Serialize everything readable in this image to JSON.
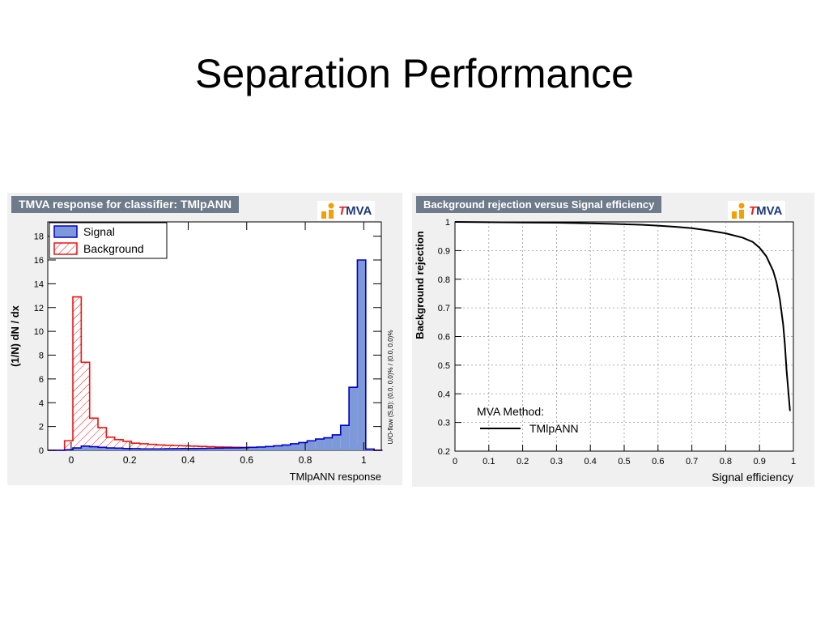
{
  "slide": {
    "title": "Separation Performance"
  },
  "chart_data": [
    {
      "type": "bar",
      "title": "TMVA response for classifier: TMlpANN",
      "logo": {
        "first": "T",
        "rest": "MVA"
      },
      "xlabel": "TMlpANN response",
      "ylabel": "(1/N) dN / dx",
      "side_label": "U/O-flow (S,B): (0.0, 0.0)% / (0.0, 0.0)%",
      "xlim": [
        -0.08,
        1.06
      ],
      "ylim": [
        0,
        19.2
      ],
      "xticks": [
        0,
        0.2,
        0.4,
        0.6,
        0.8,
        1
      ],
      "xtick_labels": [
        "0",
        "0.2",
        "0.4",
        "0.6",
        "0.8",
        "1"
      ],
      "yticks": [
        0,
        2,
        4,
        6,
        8,
        10,
        12,
        14,
        16,
        18
      ],
      "ytick_labels": [
        "0",
        "2",
        "4",
        "6",
        "8",
        "10",
        "12",
        "14",
        "16",
        "18"
      ],
      "bin_edges": [
        -0.08,
        -0.0514,
        -0.0228,
        0.0058,
        0.0344,
        0.063,
        0.0916,
        0.1202,
        0.1488,
        0.1774,
        0.206,
        0.2346,
        0.2632,
        0.2918,
        0.3204,
        0.349,
        0.3776,
        0.4062,
        0.4348,
        0.4634,
        0.492,
        0.5206,
        0.5492,
        0.5778,
        0.6064,
        0.635,
        0.6636,
        0.6922,
        0.7208,
        0.7494,
        0.778,
        0.8066,
        0.8352,
        0.8638,
        0.8924,
        0.921,
        0.9496,
        0.9782,
        1.0068,
        1.0354,
        1.064
      ],
      "legend": {
        "position": "top-left",
        "entries": [
          "Signal",
          "Background"
        ]
      },
      "series": [
        {
          "name": "Signal",
          "color": "#0000cc",
          "fill": "#7d99d9",
          "values": [
            0,
            0,
            0.05,
            0.2,
            0.35,
            0.3,
            0.25,
            0.2,
            0.18,
            0.15,
            0.14,
            0.12,
            0.12,
            0.12,
            0.13,
            0.14,
            0.15,
            0.15,
            0.16,
            0.17,
            0.18,
            0.2,
            0.2,
            0.22,
            0.25,
            0.28,
            0.32,
            0.38,
            0.45,
            0.55,
            0.65,
            0.8,
            0.95,
            1.05,
            1.3,
            2.1,
            5.3,
            16.0,
            0.1,
            0
          ]
        },
        {
          "name": "Background",
          "color": "#ee1111",
          "fill": "hatch",
          "values": [
            0,
            0,
            0.8,
            12.9,
            7.4,
            2.7,
            1.9,
            1.1,
            0.9,
            0.75,
            0.6,
            0.55,
            0.5,
            0.45,
            0.42,
            0.4,
            0.38,
            0.35,
            0.33,
            0.3,
            0.28,
            0.27,
            0.25,
            0.24,
            0.22,
            0.21,
            0.2,
            0.19,
            0.18,
            0.17,
            0.17,
            0.16,
            0.16,
            0.15,
            0.15,
            0.15,
            0.15,
            0.3,
            0.1,
            0
          ]
        }
      ]
    },
    {
      "type": "line",
      "title": "Background rejection versus Signal efficiency",
      "logo": {
        "first": "T",
        "rest": "MVA"
      },
      "xlabel": "Signal efficiency",
      "ylabel": "Background rejection",
      "xlim": [
        0,
        1
      ],
      "ylim": [
        0.2,
        1
      ],
      "grid": true,
      "xticks": [
        0,
        0.1,
        0.2,
        0.3,
        0.4,
        0.5,
        0.6,
        0.7,
        0.8,
        0.9,
        1
      ],
      "xtick_labels": [
        "0",
        "0.1",
        "0.2",
        "0.3",
        "0.4",
        "0.5",
        "0.6",
        "0.7",
        "0.8",
        "0.9",
        "1"
      ],
      "yticks": [
        0.2,
        0.3,
        0.4,
        0.5,
        0.6,
        0.7,
        0.8,
        0.9,
        1
      ],
      "ytick_labels": [
        "0.2",
        "0.3",
        "0.4",
        "0.5",
        "0.6",
        "0.7",
        "0.8",
        "0.9",
        "1"
      ],
      "legend": {
        "position": "bottom-left",
        "header": "MVA Method:",
        "entries": [
          "TMlpANN"
        ]
      },
      "series": [
        {
          "name": "TMlpANN",
          "color": "#000000",
          "x": [
            0,
            0.1,
            0.2,
            0.3,
            0.4,
            0.5,
            0.55,
            0.6,
            0.65,
            0.7,
            0.75,
            0.8,
            0.85,
            0.88,
            0.9,
            0.92,
            0.94,
            0.95,
            0.96,
            0.97,
            0.975,
            0.98,
            0.985,
            0.99
          ],
          "y": [
            1.0,
            0.999,
            0.998,
            0.997,
            0.995,
            0.992,
            0.99,
            0.987,
            0.983,
            0.978,
            0.97,
            0.96,
            0.945,
            0.93,
            0.91,
            0.88,
            0.83,
            0.79,
            0.73,
            0.64,
            0.57,
            0.48,
            0.41,
            0.34
          ]
        }
      ]
    }
  ]
}
